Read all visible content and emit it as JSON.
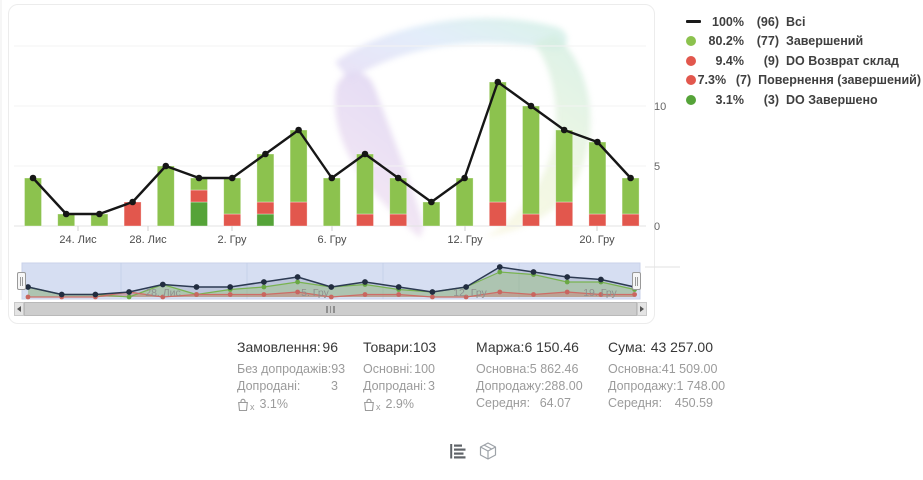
{
  "legend": {
    "items": [
      {
        "marker": "line",
        "color": "#1a1a1a",
        "pct": "100%",
        "count": "(96)",
        "label": "Всі"
      },
      {
        "marker": "dot",
        "color": "#8cc24e",
        "pct": "80.2%",
        "count": "(77)",
        "label": "Завершений"
      },
      {
        "marker": "dot",
        "color": "#e2574d",
        "pct": "9.4%",
        "count": "(9)",
        "label": "DO Возврат склад"
      },
      {
        "marker": "dot",
        "color": "#e2574d",
        "pct": "7.3%",
        "count": "(7)",
        "label": "Повернення (завершений)"
      },
      {
        "marker": "dot",
        "color": "#55a338",
        "pct": "3.1%",
        "count": "(3)",
        "label": "DO Завершено"
      }
    ]
  },
  "chart_data": {
    "type": "bar",
    "stacked": true,
    "title": "",
    "x_count": 19,
    "series": [
      {
        "name": "Завершений",
        "color": "#8cc24e",
        "values": [
          4,
          1,
          1,
          0,
          5,
          1,
          3,
          4,
          6,
          4,
          5,
          3,
          2,
          4,
          10,
          9,
          6,
          6,
          3
        ]
      },
      {
        "name": "Повернення / DO Возврат склад",
        "color": "#e2574d",
        "values": [
          0,
          0,
          0,
          2,
          0,
          1,
          1,
          1,
          2,
          0,
          1,
          1,
          0,
          0,
          2,
          1,
          2,
          1,
          1
        ]
      },
      {
        "name": "DO Завершено",
        "color": "#55a338",
        "values": [
          0,
          0,
          0,
          0,
          0,
          2,
          0,
          1,
          0,
          0,
          0,
          0,
          0,
          0,
          0,
          0,
          0,
          0,
          0
        ]
      }
    ],
    "stack_order_bottom_to_top": [
      "DO Завершено",
      "Повернення / DO Возврат склад",
      "Завершений"
    ],
    "line": {
      "name": "Всі",
      "color": "#161616",
      "values": [
        4,
        1,
        1,
        2,
        5,
        4,
        4,
        6,
        8,
        4,
        6,
        4,
        2,
        4,
        12,
        10,
        8,
        7,
        4
      ]
    },
    "ylim": [
      0,
      15
    ],
    "yticks": [
      0,
      5,
      10
    ],
    "grid_values": [
      5,
      10,
      15
    ],
    "x_tick_labels": [
      {
        "label": "24. Лис",
        "x": 78
      },
      {
        "label": "28. Лис",
        "x": 148
      },
      {
        "label": "2. Гру",
        "x": 232
      },
      {
        "label": "6. Гру",
        "x": 332
      },
      {
        "label": "12. Гру",
        "x": 465
      },
      {
        "label": "20. Гру",
        "x": 597
      }
    ],
    "navigator_labels": [
      {
        "label": "28. Лис",
        "x": 163
      },
      {
        "label": "5. Гру",
        "x": 315
      },
      {
        "label": "12. Гру",
        "x": 470
      },
      {
        "label": "19. Гру",
        "x": 600
      }
    ]
  },
  "stats": {
    "columns": [
      {
        "title": "Замовлення:",
        "value": "96",
        "rows": [
          {
            "label": "Без допродажів:",
            "value": "93"
          },
          {
            "label": "Допродані:",
            "value": "3"
          }
        ],
        "extra": "3.1%"
      },
      {
        "title": "Товари:",
        "value": "103",
        "rows": [
          {
            "label": "Основні:",
            "value": "100"
          },
          {
            "label": "Допродані:",
            "value": "3"
          }
        ],
        "extra": "2.9%"
      },
      {
        "title": "Маржа:",
        "value": "6 150.46",
        "rows": [
          {
            "label": "Основна:",
            "value": "5 862.46"
          },
          {
            "label": "Допродажу:",
            "value": "288.00"
          },
          {
            "label": "Середня:",
            "value": "64.07"
          }
        ]
      },
      {
        "title": "Сума:",
        "value": "43 257.00",
        "rows": [
          {
            "label": "Основна:",
            "value": "41 509.00"
          },
          {
            "label": "Допродажу:",
            "value": "1 748.00"
          },
          {
            "label": "Середня:",
            "value": "450.59"
          }
        ]
      }
    ]
  },
  "colors": {
    "nav_bg": "#ccd7f0",
    "nav_line": "#2c3a52",
    "nav_green": "#79b350",
    "nav_red": "#cd6d67",
    "grid": "#f3f3f3",
    "axis": "#e3e3e3",
    "tick_text": "#555555"
  }
}
